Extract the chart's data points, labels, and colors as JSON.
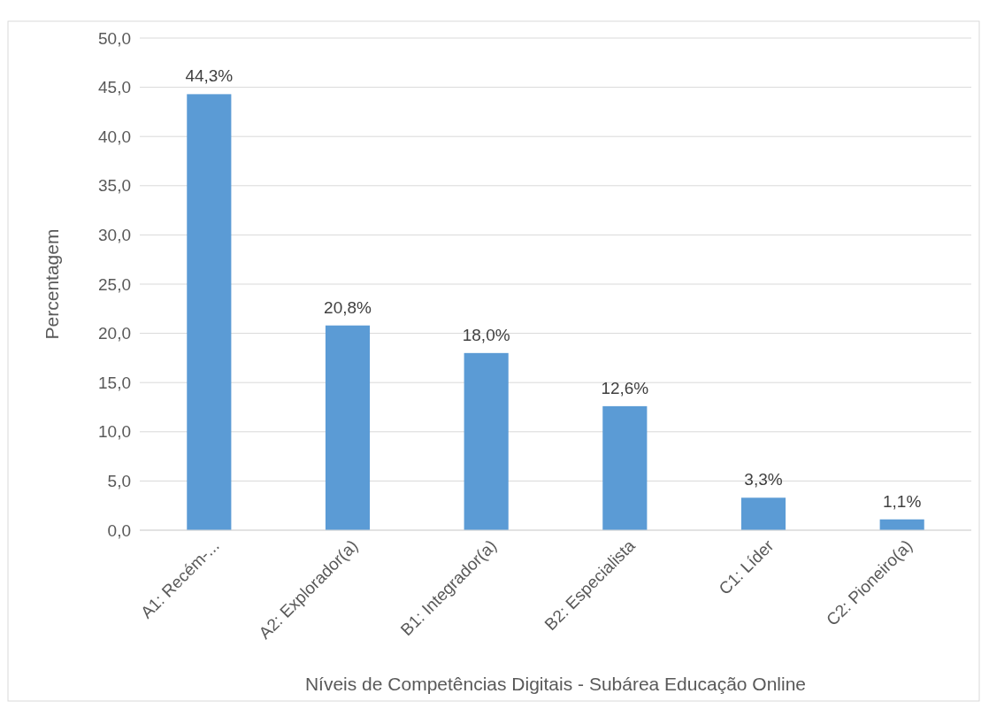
{
  "chart_data": {
    "type": "bar",
    "xlabel": "Níveis de Competências Digitais - Subárea Educação Online",
    "ylabel": "Percentagem",
    "categories": [
      "A1: Recém-...",
      "A2: Explorador(a)",
      "B1: Integrador(a)",
      "B2: Especialista",
      "C1: Líder",
      "C2: Pioneiro(a)"
    ],
    "values": [
      44.3,
      20.8,
      18.0,
      12.6,
      3.3,
      1.1
    ],
    "value_labels": [
      "44,3%",
      "20,8%",
      "18,0%",
      "12,6%",
      "3,3%",
      "1,1%"
    ],
    "color": "#5b9bd5",
    "ylim": [
      0,
      50
    ],
    "yticks": [
      {
        "value": 0,
        "label": "0,0"
      },
      {
        "value": 5,
        "label": "5,0"
      },
      {
        "value": 10,
        "label": "10,0"
      },
      {
        "value": 15,
        "label": "15,0"
      },
      {
        "value": 20,
        "label": "20,0"
      },
      {
        "value": 25,
        "label": "25,0"
      },
      {
        "value": 30,
        "label": "30,0"
      },
      {
        "value": 35,
        "label": "35,0"
      },
      {
        "value": 40,
        "label": "40,0"
      },
      {
        "value": 45,
        "label": "45,0"
      },
      {
        "value": 50,
        "label": "50,0"
      }
    ],
    "grid": "y"
  }
}
